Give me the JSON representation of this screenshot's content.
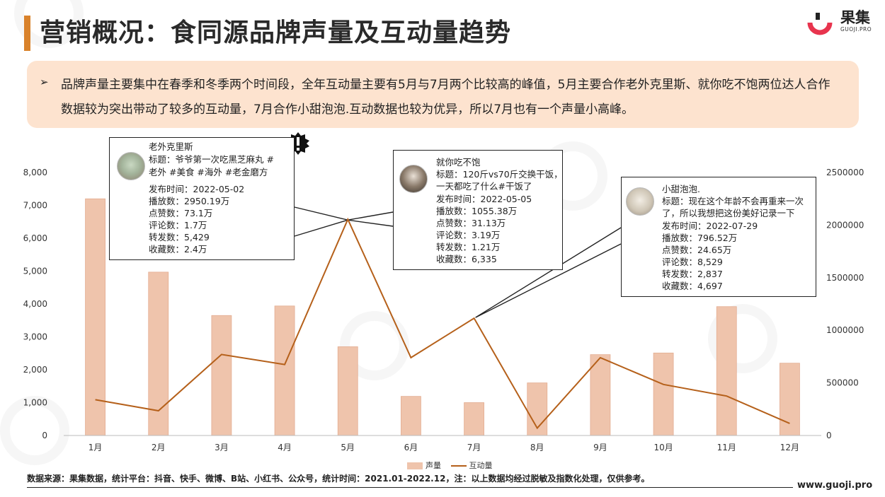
{
  "header": {
    "title": "营销概况：食同源品牌声量及互动量趋势",
    "logo_text": "果集",
    "logo_sub": "GUOJI.PRO"
  },
  "summary": {
    "text": "品牌声量主要集中在春季和冬季两个时间段，全年互动量主要有5月与7月两个比较高的峰值，5月主要合作老外克里斯、就你吃不饱两位达人合作数据较为突出带动了较多的互动量，7月合作小甜泡泡.互动数据也较为优异，所以7月也有一个声量小高峰。"
  },
  "colors": {
    "accent": "#d9822b",
    "bar_fill": "#efc4ac",
    "line": "#b5601a",
    "summary_bg": "#fde3cf"
  },
  "chart_data": {
    "type": "bar",
    "categories": [
      "1月",
      "2月",
      "3月",
      "4月",
      "5月",
      "6月",
      "7月",
      "8月",
      "9月",
      "10月",
      "11月",
      "12月"
    ],
    "series": [
      {
        "name": "声量",
        "type": "bar",
        "axis": "left",
        "values": [
          7200,
          4970,
          3650,
          3940,
          2700,
          1190,
          1000,
          1600,
          2460,
          2510,
          3920,
          2200
        ]
      },
      {
        "name": "互动量",
        "type": "line",
        "axis": "right",
        "values": [
          340000,
          235000,
          770000,
          675000,
          2055000,
          740000,
          1115000,
          70000,
          740000,
          485000,
          375000,
          115000
        ]
      }
    ],
    "y_left": {
      "min": 0,
      "max": 8000,
      "ticks": [
        "0",
        "1,000",
        "2,000",
        "3,000",
        "4,000",
        "5,000",
        "6,000",
        "7,000",
        "8,000"
      ]
    },
    "y_right": {
      "min": 0,
      "max": 2500000,
      "ticks": [
        "0",
        "500000",
        "1000000",
        "1500000",
        "2000000",
        "2500000"
      ]
    },
    "grid": false,
    "legend_position": "bottom"
  },
  "callouts": [
    {
      "name": "老外克里斯",
      "lines": [
        "标题：爷爷第一次吃黑芝麻丸 #",
        "老外 #美食 #海外 #老金磨方",
        "发布时间：2022-05-02",
        "播放数：2950.19万",
        "点赞数：73.1万",
        "评论数：1.7万",
        "转发数：5,429",
        "收藏数：2.4万"
      ]
    },
    {
      "name": "就你吃不饱",
      "lines": [
        "标题：120斤vs70斤交换干饭，",
        "一天都吃了什么#干饭了",
        "发布时间：2022-05-05",
        "播放数：1055.38万",
        "点赞数：31.13万",
        "评论数：3.19万",
        "转发数：1.21万",
        "收藏数：6,335"
      ]
    },
    {
      "name": "小甜泡泡.",
      "lines": [
        "标题：现在这个年龄不会再重来一次",
        "了，所以我想把这份美好记录一下",
        "发布时间：2022-07-29",
        "播放数：796.52万",
        "点赞数：24.65万",
        "评论数：8,529",
        "转发数：2,837",
        "收藏数：4,697"
      ]
    }
  ],
  "footer": {
    "source": "数据来源：果集数据，统计平台：抖音、快手、微博、B站、小红书、公众号，统计时间：2021.01-2022.12，注：以上数据均经过脱敏及指数化处理，仅供参考。",
    "url": "www.guoji.pro"
  }
}
